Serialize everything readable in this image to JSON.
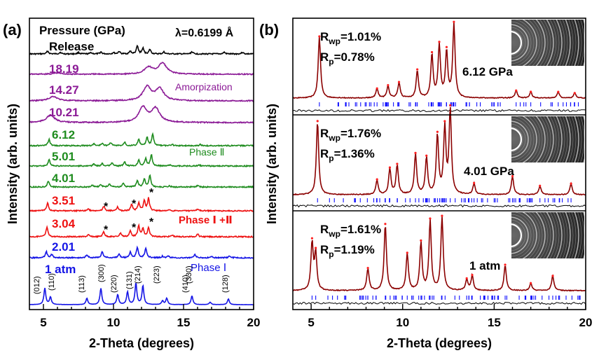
{
  "panel_a": {
    "label": "(a)",
    "pressure_header": "Pressure (GPa)",
    "wavelength": "λ=0.6199 Å",
    "xlabel": "2-Theta (degrees)",
    "ylabel": "Intensity (arb. units)",
    "x_ticks": [
      "5",
      "10",
      "15",
      "20"
    ],
    "annotations": {
      "amorphization": "Amorpization",
      "phase_2": "Phase Ⅱ",
      "phase_12": "Phase Ⅰ +Ⅱ",
      "phase_1": "Phase Ⅰ",
      "star": "*"
    },
    "traces": [
      {
        "label": "Release",
        "color": "#000000"
      },
      {
        "label": "18.19",
        "color": "#8B1A96"
      },
      {
        "label": "14.27",
        "color": "#8B1A96"
      },
      {
        "label": "10.21",
        "color": "#8B1A96"
      },
      {
        "label": "6.12",
        "color": "#1E8C1E"
      },
      {
        "label": "5.01",
        "color": "#1E8C1E"
      },
      {
        "label": "4.01",
        "color": "#1E8C1E"
      },
      {
        "label": "3.51",
        "color": "#EE1111"
      },
      {
        "label": "3.04",
        "color": "#EE1111"
      },
      {
        "label": "2.01",
        "color": "#1414E6"
      },
      {
        "label": "1 atm",
        "color": "#1414E6"
      }
    ],
    "hkl": [
      "(012)",
      "(110)",
      "(113)",
      "(300)",
      "(220)",
      "(131)",
      "(214)",
      "(223)",
      "(410)",
      "(330)",
      "(128)"
    ]
  },
  "panel_b": {
    "label": "(b)",
    "xlabel": "2-Theta (degrees)",
    "ylabel": "Intensity (arb. units)",
    "x_ticks": [
      "5",
      "10",
      "15",
      "20"
    ],
    "subpanels": [
      {
        "pressure": "6.12 GPa",
        "rwp_sym": "R",
        "rwp_sub": "wp",
        "rwp_val": "=1.01%",
        "rp_sym": "R",
        "rp_sub": "p",
        "rp_val": "=0.78%"
      },
      {
        "pressure": "4.01 GPa",
        "rwp_sym": "R",
        "rwp_sub": "wp",
        "rwp_val": "=1.76%",
        "rp_sym": "R",
        "rp_sub": "p",
        "rp_val": "=1.36%"
      },
      {
        "pressure": "1 atm",
        "rwp_sym": "R",
        "rwp_sub": "wp",
        "rwp_val": "=1.61%",
        "rp_sym": "R",
        "rp_sub": "p",
        "rp_val": "=1.19%"
      }
    ]
  },
  "colors": {
    "black": "#000000",
    "purple": "#8B1A96",
    "green": "#1E8C1E",
    "red": "#EE1111",
    "blue": "#1414E6",
    "fit": "#8B0000",
    "obs": "#FF2020",
    "tick": "#1010FF"
  },
  "chart_data": [
    {
      "type": "line",
      "title": "(a)",
      "xlabel": "2-Theta (degrees)",
      "ylabel": "Intensity (arb. units)",
      "xlim": [
        4,
        20
      ],
      "series": [
        {
          "name": "Release",
          "peaks": [
            [
              5.3,
              0.5
            ],
            [
              6.2,
              0.3
            ],
            [
              7.5,
              0.25
            ],
            [
              8.4,
              0.25
            ],
            [
              9.1,
              0.35
            ],
            [
              10.0,
              0.25
            ],
            [
              10.4,
              0.45
            ],
            [
              11.2,
              0.5
            ],
            [
              11.7,
              1.4
            ],
            [
              12.1,
              1.0
            ],
            [
              12.6,
              0.8
            ],
            [
              13.6,
              0.35
            ],
            [
              15.6,
              0.4
            ],
            [
              17.9,
              0.3
            ],
            [
              19.2,
              0.3
            ]
          ]
        },
        {
          "name": "18.19",
          "peaks": [
            [
              6.0,
              0.15
            ],
            [
              12.5,
              0.8
            ],
            [
              13.5,
              1.3
            ]
          ]
        },
        {
          "name": "14.27",
          "peaks": [
            [
              5.7,
              0.45
            ],
            [
              12.4,
              1.4
            ],
            [
              13.3,
              1.2
            ]
          ]
        },
        {
          "name": "10.21",
          "peaks": [
            [
              5.5,
              0.7
            ],
            [
              12.1,
              1.4
            ],
            [
              13.0,
              1.3
            ]
          ]
        },
        {
          "name": "6.12",
          "peaks": [
            [
              5.4,
              1.0
            ],
            [
              8.6,
              0.3
            ],
            [
              9.2,
              0.4
            ],
            [
              9.8,
              0.5
            ],
            [
              10.8,
              0.6
            ],
            [
              11.8,
              1.0
            ],
            [
              12.4,
              1.3
            ],
            [
              12.8,
              1.8
            ],
            [
              14.2,
              0.2
            ],
            [
              16.2,
              0.2
            ]
          ]
        },
        {
          "name": "5.01",
          "peaks": [
            [
              5.4,
              1.0
            ],
            [
              8.6,
              0.3
            ],
            [
              9.2,
              0.4
            ],
            [
              9.9,
              0.5
            ],
            [
              10.8,
              0.6
            ],
            [
              11.8,
              1.0
            ],
            [
              12.3,
              1.2
            ],
            [
              12.7,
              1.8
            ],
            [
              14.0,
              0.2
            ],
            [
              16.1,
              0.2
            ]
          ]
        },
        {
          "name": "4.01",
          "peaks": [
            [
              5.35,
              1.0
            ],
            [
              8.5,
              0.3
            ],
            [
              9.1,
              0.4
            ],
            [
              9.7,
              0.5
            ],
            [
              10.7,
              0.6
            ],
            [
              11.7,
              1.0
            ],
            [
              12.2,
              1.3
            ],
            [
              12.6,
              1.9
            ],
            [
              14.0,
              0.2
            ],
            [
              16.0,
              0.2
            ]
          ]
        },
        {
          "name": "3.51",
          "peaks": [
            [
              5.3,
              1.2
            ],
            [
              8.2,
              0.3
            ],
            [
              9.3,
              0.7
            ],
            [
              10.3,
              0.6
            ],
            [
              11.3,
              1.0
            ],
            [
              11.8,
              1.2
            ],
            [
              12.2,
              1.6
            ],
            [
              12.5,
              2.0
            ],
            [
              14.0,
              0.2
            ],
            [
              16.0,
              0.3
            ]
          ]
        },
        {
          "name": "3.04",
          "peaks": [
            [
              5.25,
              1.5
            ],
            [
              8.2,
              0.3
            ],
            [
              9.3,
              0.8
            ],
            [
              10.5,
              0.6
            ],
            [
              11.2,
              0.9
            ],
            [
              11.8,
              1.7
            ],
            [
              12.1,
              1.3
            ],
            [
              12.5,
              1.4
            ],
            [
              14.2,
              0.25
            ],
            [
              16.0,
              0.4
            ]
          ]
        },
        {
          "name": "2.01",
          "peaks": [
            [
              5.2,
              1.0
            ],
            [
              5.6,
              0.5
            ],
            [
              8.1,
              0.5
            ],
            [
              9.2,
              1.0
            ],
            [
              10.4,
              0.6
            ],
            [
              11.2,
              0.9
            ],
            [
              11.7,
              1.6
            ],
            [
              12.3,
              1.5
            ],
            [
              13.5,
              0.25
            ],
            [
              13.9,
              0.3
            ],
            [
              15.8,
              0.5
            ],
            [
              17.0,
              0.2
            ],
            [
              18.3,
              0.3
            ]
          ]
        },
        {
          "name": "1 atm",
          "peaks": [
            [
              5.1,
              1.3
            ],
            [
              5.5,
              0.6
            ],
            [
              8.1,
              0.5
            ],
            [
              9.1,
              1.3
            ],
            [
              10.3,
              0.8
            ],
            [
              11.0,
              1.0
            ],
            [
              11.6,
              1.7
            ],
            [
              12.1,
              1.5
            ],
            [
              13.5,
              0.3
            ],
            [
              13.8,
              0.5
            ],
            [
              15.6,
              0.7
            ],
            [
              16.9,
              0.2
            ],
            [
              18.2,
              0.45
            ]
          ]
        }
      ]
    },
    {
      "type": "line",
      "title": "(b)",
      "xlabel": "2-Theta (degrees)",
      "ylabel": "Intensity (arb. units)",
      "xlim": [
        4,
        20
      ],
      "series": [
        {
          "name": "6.12 GPa",
          "peaks": [
            [
              5.45,
              1.0
            ],
            [
              8.6,
              0.15
            ],
            [
              9.2,
              0.2
            ],
            [
              9.8,
              0.25
            ],
            [
              10.8,
              0.45
            ],
            [
              11.6,
              0.7
            ],
            [
              12.0,
              0.85
            ],
            [
              12.4,
              0.75
            ],
            [
              12.8,
              1.2
            ],
            [
              16.2,
              0.12
            ],
            [
              17.0,
              0.1
            ],
            [
              18.5,
              0.1
            ],
            [
              19.4,
              0.08
            ]
          ]
        },
        {
          "name": "4.01 GPa",
          "peaks": [
            [
              5.35,
              1.0
            ],
            [
              8.6,
              0.2
            ],
            [
              9.3,
              0.35
            ],
            [
              9.7,
              0.4
            ],
            [
              10.7,
              0.55
            ],
            [
              11.3,
              0.5
            ],
            [
              11.9,
              0.8
            ],
            [
              12.3,
              0.9
            ],
            [
              12.6,
              1.15
            ],
            [
              13.9,
              0.15
            ],
            [
              16.0,
              0.25
            ],
            [
              17.5,
              0.12
            ],
            [
              19.2,
              0.15
            ]
          ]
        },
        {
          "name": "1 atm",
          "peaks": [
            [
              5.05,
              0.65
            ],
            [
              5.25,
              0.5
            ],
            [
              8.1,
              0.3
            ],
            [
              9.05,
              0.9
            ],
            [
              10.25,
              0.5
            ],
            [
              11.0,
              0.65
            ],
            [
              11.5,
              0.95
            ],
            [
              12.15,
              1.0
            ],
            [
              13.5,
              0.15
            ],
            [
              13.8,
              0.2
            ],
            [
              15.6,
              0.35
            ],
            [
              17.0,
              0.1
            ],
            [
              18.2,
              0.2
            ]
          ]
        }
      ]
    }
  ]
}
